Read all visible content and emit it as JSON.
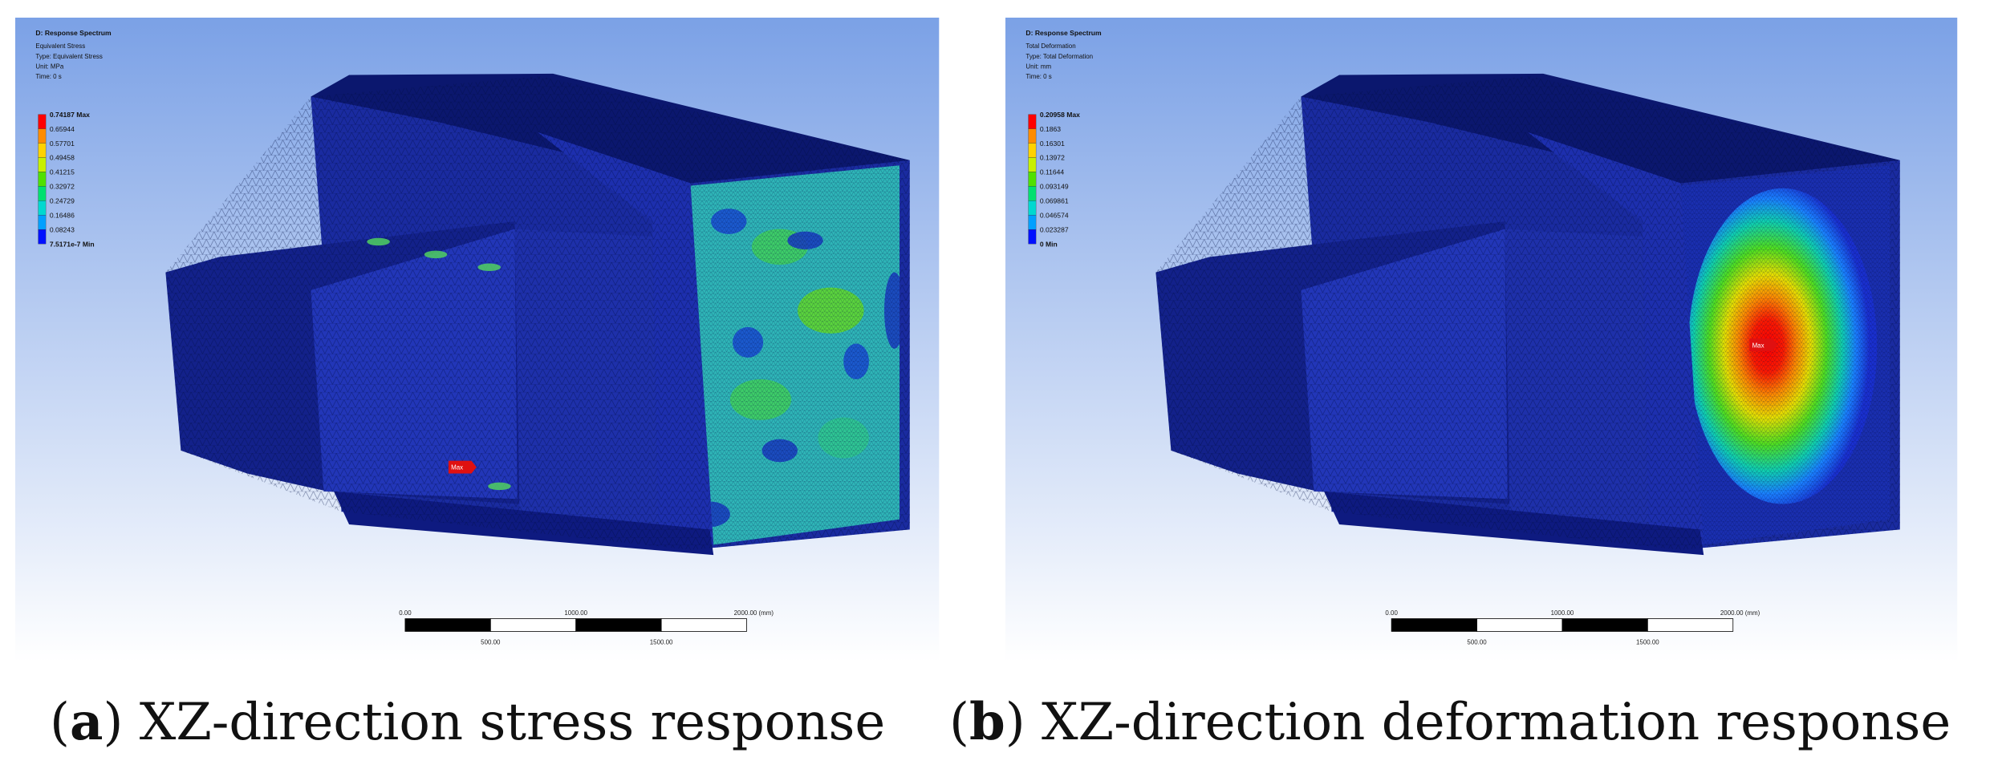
{
  "panels": [
    {
      "header": {
        "title": "D: Response Spectrum",
        "lines": [
          "Equivalent Stress",
          "Type: Equivalent Stress",
          "Unit: MPa",
          "Time: 0 s"
        ]
      },
      "legend": [
        "0.74187 Max",
        "0.65944",
        "0.57701",
        "0.49458",
        "0.41215",
        "0.32972",
        "0.24729",
        "0.16486",
        "0.08243",
        "7.5171e-7 Min"
      ],
      "max_marker": "Max",
      "scale": {
        "top": [
          "0.00",
          "1000.00",
          "2000.00 (mm)"
        ],
        "bottom": [
          "500.00",
          "1500.00"
        ]
      },
      "caption": [
        "(",
        "a",
        ") XZ-direction stress response"
      ]
    },
    {
      "header": {
        "title": "D: Response Spectrum",
        "lines": [
          "Total Deformation",
          "Type: Total Deformation",
          "Unit: mm",
          "Time: 0 s"
        ]
      },
      "legend": [
        "0.20958 Max",
        "0.1863",
        "0.16301",
        "0.13972",
        "0.11644",
        "0.093149",
        "0.069861",
        "0.046574",
        "0.023287",
        "0 Min"
      ],
      "max_marker": "Max",
      "scale": {
        "top": [
          "0.00",
          "1000.00",
          "2000.00 (mm)"
        ],
        "bottom": [
          "500.00",
          "1500.00"
        ]
      },
      "caption": [
        "(",
        "b",
        ") XZ-direction deformation response"
      ]
    }
  ]
}
